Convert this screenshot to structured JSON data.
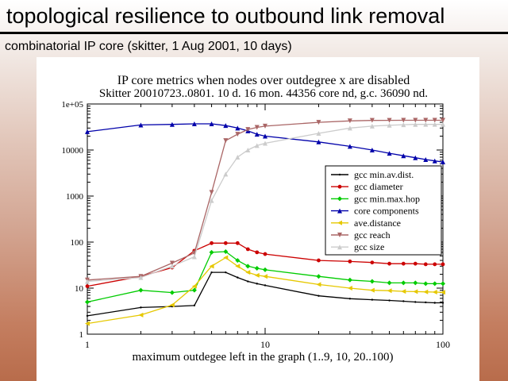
{
  "slide": {
    "title": "topological resilience to outbound link removal",
    "subtitle": "combinatorial IP core (skitter, 1 Aug 2001, 10 days)"
  },
  "chart_data": {
    "type": "line",
    "title": "IP core metrics when nodes over outdegree x are disabled",
    "subtitle": "Skitter 20010723..0801. 10 d. 16 mon. 44356 core nd, g.c. 36090 nd.",
    "xlabel": "maximum outdegee left in the graph (1..9, 10, 20..100)",
    "ylabel": "",
    "xscale": "log",
    "yscale": "log",
    "xlim": [
      1,
      100
    ],
    "ylim": [
      1,
      100000
    ],
    "xticks": [
      {
        "v": 1,
        "label": "1"
      },
      {
        "v": 10,
        "label": "10"
      },
      {
        "v": 100,
        "label": "100"
      }
    ],
    "yticks": [
      {
        "v": 1,
        "label": "1"
      },
      {
        "v": 10,
        "label": "10"
      },
      {
        "v": 100,
        "label": "100"
      },
      {
        "v": 1000,
        "label": "1000"
      },
      {
        "v": 10000,
        "label": "10000"
      },
      {
        "v": 100000,
        "label": "1e+05"
      }
    ],
    "grid": false,
    "legend_position": "center-right",
    "x": [
      1,
      2,
      3,
      4,
      5,
      6,
      7,
      8,
      9,
      10,
      20,
      30,
      40,
      50,
      60,
      70,
      80,
      90,
      100
    ],
    "series": [
      {
        "name": "gcc min.av.dist.",
        "color": "#000000",
        "marker": "dot",
        "values": [
          2.5,
          3.8,
          4.0,
          4.2,
          22,
          22,
          17,
          14,
          12.5,
          11.5,
          6.8,
          5.9,
          5.6,
          5.4,
          5.2,
          5.0,
          4.9,
          4.8,
          4.8
        ]
      },
      {
        "name": "gcc diameter",
        "color": "#cc0000",
        "marker": "circle",
        "values": [
          11,
          18,
          28,
          65,
          95,
          95,
          95,
          70,
          60,
          55,
          40,
          38,
          36,
          34,
          34,
          34,
          33,
          33,
          33
        ]
      },
      {
        "name": "gcc min.max.hop",
        "color": "#00cc00",
        "marker": "diamond",
        "values": [
          5,
          9,
          8,
          9,
          60,
          62,
          40,
          30,
          27,
          25,
          18,
          15,
          14,
          13,
          13,
          13,
          12.5,
          12.5,
          12.5
        ]
      },
      {
        "name": "core components",
        "color": "#0000aa",
        "marker": "triangle-up",
        "values": [
          25000,
          35000,
          36000,
          37000,
          37000,
          34000,
          30000,
          26000,
          22000,
          20000,
          15000,
          12000,
          10000,
          8500,
          7500,
          6800,
          6200,
          5800,
          5500
        ]
      },
      {
        "name": "ave.distance",
        "color": "#e6c800",
        "marker": "triangle-left",
        "values": [
          1.7,
          2.6,
          4.3,
          11,
          30,
          46,
          30,
          22,
          19,
          18,
          12,
          10,
          9,
          8.8,
          8.5,
          8.4,
          8.3,
          8.2,
          8.1
        ]
      },
      {
        "name": "gcc reach",
        "color": "#aa6666",
        "marker": "triangle-down",
        "values": [
          15,
          18,
          35,
          58,
          1200,
          16000,
          22000,
          28000,
          31000,
          33000,
          40000,
          43000,
          44000,
          44200,
          44300,
          44300,
          44356,
          44356,
          44356
        ]
      },
      {
        "name": "gcc size",
        "color": "#cccccc",
        "marker": "triangle-up",
        "values": [
          14,
          17,
          30,
          48,
          800,
          3000,
          7000,
          10000,
          12500,
          14000,
          23000,
          30000,
          33000,
          34500,
          35500,
          36000,
          36090,
          36090,
          36090
        ]
      }
    ]
  }
}
